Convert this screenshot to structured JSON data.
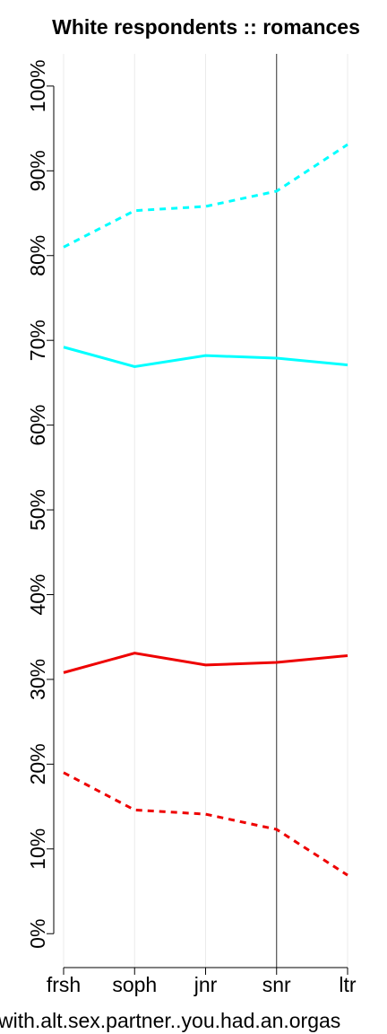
{
  "chart_data": {
    "type": "line",
    "title": "White respondents :: romances",
    "x_label": "with.alt.sex.partner..you.had.an.orgas",
    "categories": [
      "frsh",
      "soph",
      "jnr",
      "snr",
      "ltr"
    ],
    "series": [
      {
        "color": "#00ffff",
        "dashed": true,
        "values": [
          81.0,
          85.3,
          85.8,
          87.6,
          93.1
        ]
      },
      {
        "color": "#00ffff",
        "dashed": false,
        "values": [
          69.2,
          66.9,
          68.2,
          67.9,
          67.1
        ]
      },
      {
        "color": "#ee0000",
        "dashed": false,
        "values": [
          30.8,
          33.1,
          31.7,
          32.0,
          32.8
        ]
      },
      {
        "color": "#ee0000",
        "dashed": true,
        "values": [
          19.0,
          14.6,
          14.1,
          12.3,
          6.9
        ]
      }
    ],
    "ylim": [
      -4,
      103.8
    ],
    "yticks": [
      {
        "value": 0,
        "label": "0%"
      },
      {
        "value": 10,
        "label": "10%"
      },
      {
        "value": 20,
        "label": "20%"
      },
      {
        "value": 30,
        "label": "30%"
      },
      {
        "value": 40,
        "label": "40%"
      },
      {
        "value": 50,
        "label": "50%"
      },
      {
        "value": 60,
        "label": "60%"
      },
      {
        "value": 70,
        "label": "70%"
      },
      {
        "value": 80,
        "label": "80%"
      },
      {
        "value": 90,
        "label": "90%"
      },
      {
        "value": 100,
        "label": "100%"
      }
    ],
    "reference_line": "snr",
    "grid": true
  }
}
